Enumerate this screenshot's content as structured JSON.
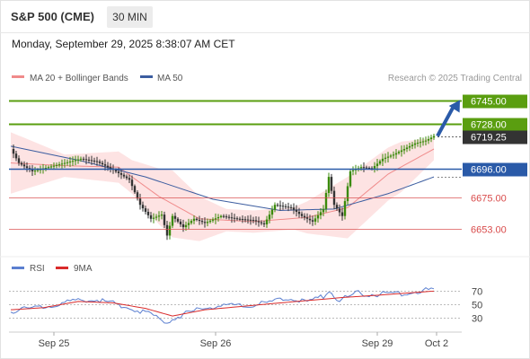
{
  "header": {
    "symbol": "S&P 500 (CME)",
    "timeframe": "30 MIN",
    "datetime": "Monday, September 29, 2025 8:38:07 AM CET"
  },
  "legend": {
    "ma20": "MA 20 + Bollinger Bands",
    "ma50": "MA 50",
    "credit": "Research © 2025 Trading Central"
  },
  "rsi_legend": {
    "rsi": "RSI",
    "ma9": "9MA"
  },
  "colors": {
    "green": "#5a9e10",
    "blue": "#2a5aa8",
    "red": "#d94b4b",
    "band": "#fcd9d9",
    "ma20": "#f08b8b",
    "ma50": "#3c5da0",
    "rsi": "#5b7fd0",
    "rsi_ma": "#d92b2b",
    "dark": "#333333"
  },
  "chart_data": [
    {
      "type": "candlestick",
      "title": "S&P 500 (CME)",
      "interval": "30 MIN",
      "x_ticks": [
        "Sep 25",
        "Sep 26",
        "Sep 29",
        "Oct 2"
      ],
      "ylim": [
        6638,
        6755
      ],
      "bollinger_ma_period": 20,
      "levels": [
        {
          "value": 6745.0,
          "label": "6745.00",
          "kind": "resistance"
        },
        {
          "value": 6728.0,
          "label": "6728.00",
          "kind": "resistance"
        },
        {
          "value": 6696.0,
          "label": "6696.00",
          "kind": "pivot"
        },
        {
          "value": 6675.0,
          "label": "6675.00",
          "kind": "support"
        },
        {
          "value": 6653.0,
          "label": "6653.00",
          "kind": "support"
        }
      ],
      "last_price": {
        "value": 6719.25,
        "label": "6719.25"
      },
      "forecast_arrow": {
        "from": 6719.25,
        "to": 6745.0
      },
      "close_path": [
        {
          "i": 0,
          "c": 6710
        },
        {
          "i": 3,
          "c": 6700
        },
        {
          "i": 8,
          "c": 6694
        },
        {
          "i": 14,
          "c": 6697
        },
        {
          "i": 20,
          "c": 6700
        },
        {
          "i": 26,
          "c": 6703
        },
        {
          "i": 32,
          "c": 6701
        },
        {
          "i": 38,
          "c": 6695
        },
        {
          "i": 44,
          "c": 6688
        },
        {
          "i": 48,
          "c": 6670
        },
        {
          "i": 52,
          "c": 6660
        },
        {
          "i": 56,
          "c": 6663
        },
        {
          "i": 58,
          "c": 6648
        },
        {
          "i": 60,
          "c": 6662
        },
        {
          "i": 64,
          "c": 6654
        },
        {
          "i": 68,
          "c": 6660
        },
        {
          "i": 72,
          "c": 6657
        },
        {
          "i": 78,
          "c": 6662
        },
        {
          "i": 84,
          "c": 6660
        },
        {
          "i": 90,
          "c": 6659
        },
        {
          "i": 94,
          "c": 6656
        },
        {
          "i": 98,
          "c": 6670
        },
        {
          "i": 104,
          "c": 6668
        },
        {
          "i": 108,
          "c": 6662
        },
        {
          "i": 112,
          "c": 6658
        },
        {
          "i": 116,
          "c": 6667
        },
        {
          "i": 118,
          "c": 6690
        },
        {
          "i": 120,
          "c": 6670
        },
        {
          "i": 123,
          "c": 6662
        },
        {
          "i": 126,
          "c": 6694
        },
        {
          "i": 130,
          "c": 6697
        },
        {
          "i": 134,
          "c": 6696
        },
        {
          "i": 138,
          "c": 6703
        },
        {
          "i": 142,
          "c": 6706
        },
        {
          "i": 146,
          "c": 6710
        },
        {
          "i": 150,
          "c": 6714
        },
        {
          "i": 154,
          "c": 6716
        },
        {
          "i": 157,
          "c": 6719.25
        }
      ],
      "ma20_path": [
        {
          "i": 0,
          "v": 6700
        },
        {
          "i": 20,
          "v": 6698
        },
        {
          "i": 40,
          "v": 6697
        },
        {
          "i": 55,
          "v": 6676
        },
        {
          "i": 70,
          "v": 6660
        },
        {
          "i": 90,
          "v": 6658
        },
        {
          "i": 110,
          "v": 6661
        },
        {
          "i": 125,
          "v": 6668
        },
        {
          "i": 140,
          "v": 6692
        },
        {
          "i": 157,
          "v": 6710
        }
      ],
      "ma50_path": [
        {
          "i": 0,
          "v": 6712
        },
        {
          "i": 25,
          "v": 6702
        },
        {
          "i": 50,
          "v": 6690
        },
        {
          "i": 75,
          "v": 6674
        },
        {
          "i": 100,
          "v": 6666
        },
        {
          "i": 120,
          "v": 6667
        },
        {
          "i": 140,
          "v": 6678
        },
        {
          "i": 157,
          "v": 6690
        }
      ],
      "band_halfwidth_path": [
        {
          "i": 0,
          "v": 22
        },
        {
          "i": 20,
          "v": 8
        },
        {
          "i": 45,
          "v": 12
        },
        {
          "i": 60,
          "v": 24
        },
        {
          "i": 80,
          "v": 8
        },
        {
          "i": 105,
          "v": 8
        },
        {
          "i": 125,
          "v": 22
        },
        {
          "i": 145,
          "v": 18
        },
        {
          "i": 157,
          "v": 8
        }
      ]
    },
    {
      "type": "line",
      "title": "RSI",
      "y_ticks": [
        30,
        50,
        70
      ],
      "ylim": [
        15,
        85
      ],
      "series": [
        {
          "name": "RSI",
          "points": [
            {
              "i": 0,
              "v": 40
            },
            {
              "i": 10,
              "v": 46
            },
            {
              "i": 20,
              "v": 52
            },
            {
              "i": 30,
              "v": 58
            },
            {
              "i": 40,
              "v": 50
            },
            {
              "i": 50,
              "v": 38
            },
            {
              "i": 58,
              "v": 25
            },
            {
              "i": 66,
              "v": 38
            },
            {
              "i": 76,
              "v": 48
            },
            {
              "i": 86,
              "v": 47
            },
            {
              "i": 96,
              "v": 52
            },
            {
              "i": 104,
              "v": 60
            },
            {
              "i": 110,
              "v": 52
            },
            {
              "i": 116,
              "v": 62
            },
            {
              "i": 118,
              "v": 70
            },
            {
              "i": 122,
              "v": 55
            },
            {
              "i": 128,
              "v": 66
            },
            {
              "i": 136,
              "v": 64
            },
            {
              "i": 146,
              "v": 66
            },
            {
              "i": 157,
              "v": 72
            }
          ]
        },
        {
          "name": "9MA",
          "points": [
            {
              "i": 0,
              "v": 42
            },
            {
              "i": 12,
              "v": 45
            },
            {
              "i": 25,
              "v": 54
            },
            {
              "i": 38,
              "v": 52
            },
            {
              "i": 50,
              "v": 44
            },
            {
              "i": 60,
              "v": 33
            },
            {
              "i": 72,
              "v": 42
            },
            {
              "i": 86,
              "v": 47
            },
            {
              "i": 100,
              "v": 52
            },
            {
              "i": 112,
              "v": 56
            },
            {
              "i": 124,
              "v": 60
            },
            {
              "i": 136,
              "v": 63
            },
            {
              "i": 157,
              "v": 69
            }
          ]
        }
      ]
    }
  ]
}
